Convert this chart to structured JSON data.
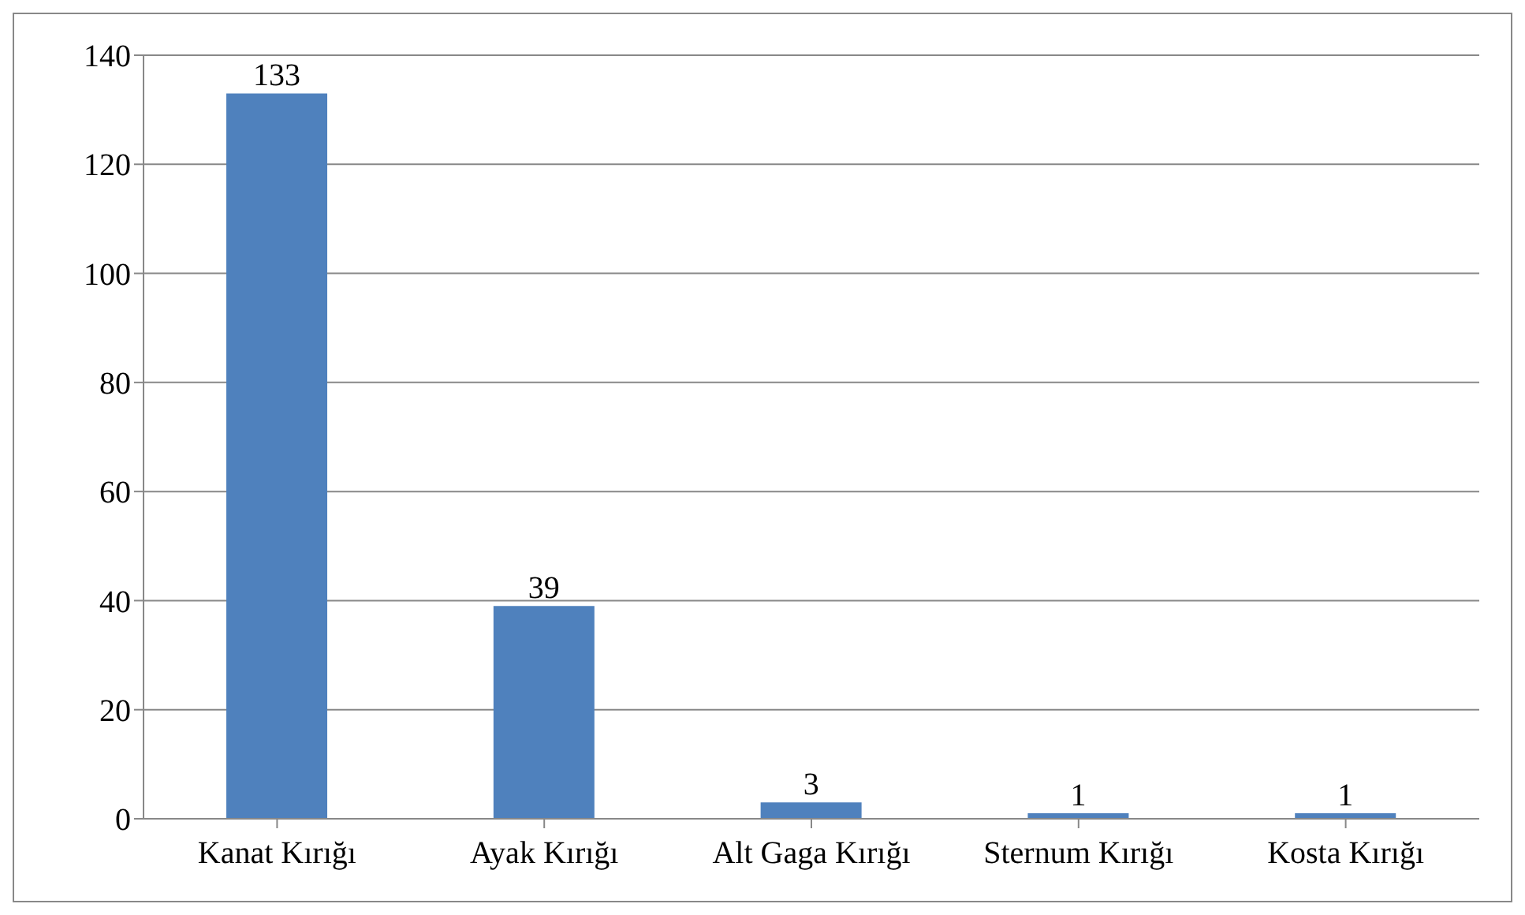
{
  "chart_data": {
    "type": "bar",
    "categories": [
      "Kanat Kırığı",
      "Ayak  Kırığı",
      "Alt Gaga Kırığı",
      "Sternum Kırığı",
      "Kosta Kırığı"
    ],
    "values": [
      133,
      39,
      3,
      1,
      1
    ],
    "color": "#4f81bd",
    "ylim": [
      0,
      140
    ],
    "yticks": [
      0,
      20,
      40,
      60,
      80,
      100,
      120,
      140
    ],
    "grid": "y",
    "data_labels": true,
    "legend": false
  }
}
